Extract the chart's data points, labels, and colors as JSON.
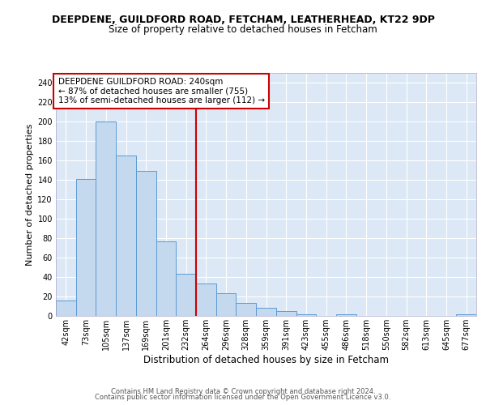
{
  "title": "DEEPDENE, GUILDFORD ROAD, FETCHAM, LEATHERHEAD, KT22 9DP",
  "subtitle": "Size of property relative to detached houses in Fetcham",
  "xlabel": "Distribution of detached houses by size in Fetcham",
  "ylabel": "Number of detached properties",
  "bar_labels": [
    "42sqm",
    "73sqm",
    "105sqm",
    "137sqm",
    "169sqm",
    "201sqm",
    "232sqm",
    "264sqm",
    "296sqm",
    "328sqm",
    "359sqm",
    "391sqm",
    "423sqm",
    "455sqm",
    "486sqm",
    "518sqm",
    "550sqm",
    "582sqm",
    "613sqm",
    "645sqm",
    "677sqm"
  ],
  "bar_values": [
    16,
    141,
    200,
    165,
    149,
    77,
    43,
    33,
    23,
    13,
    8,
    5,
    2,
    0,
    2,
    0,
    0,
    0,
    0,
    0,
    2
  ],
  "bar_color": "#c5d9ee",
  "bar_edge_color": "#5b9bd5",
  "vline_x": 6.5,
  "vline_color": "#cc0000",
  "annotation_title": "DEEPDENE GUILDFORD ROAD: 240sqm",
  "annotation_line1": "← 87% of detached houses are smaller (755)",
  "annotation_line2": "13% of semi-detached houses are larger (112) →",
  "annotation_box_edge": "#cc0000",
  "fig_background": "#ffffff",
  "plot_background": "#dce8f5",
  "grid_color": "#ffffff",
  "footer1": "Contains HM Land Registry data © Crown copyright and database right 2024.",
  "footer2": "Contains public sector information licensed under the Open Government Licence v3.0.",
  "ylim": [
    0,
    250
  ],
  "yticks": [
    0,
    20,
    40,
    60,
    80,
    100,
    120,
    140,
    160,
    180,
    200,
    220,
    240
  ],
  "title_fontsize": 9,
  "subtitle_fontsize": 8.5,
  "ylabel_fontsize": 8,
  "xlabel_fontsize": 8.5,
  "tick_fontsize": 7,
  "annot_fontsize": 7.5,
  "footer_fontsize": 6
}
